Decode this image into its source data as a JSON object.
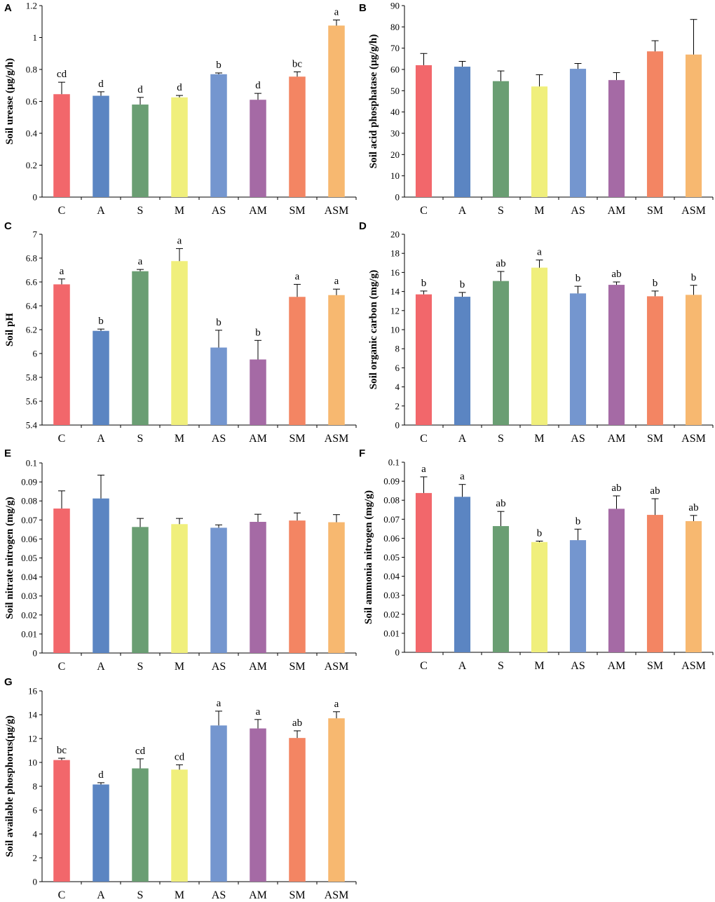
{
  "colors": {
    "C": "#f2676b",
    "A": "#5b85c2",
    "S": "#6a9e73",
    "M": "#f0ef7c",
    "AS": "#7496cf",
    "AM": "#a56aa5",
    "SM": "#f38563",
    "ASM": "#f7b870"
  },
  "chart_data": [
    {
      "panel": "A",
      "type": "bar",
      "ylabel": "Soil urease (μg/g/h)",
      "categories": [
        "C",
        "A",
        "S",
        "M",
        "AS",
        "AM",
        "SM",
        "ASM"
      ],
      "values": [
        0.645,
        0.635,
        0.58,
        0.625,
        0.77,
        0.61,
        0.755,
        1.075
      ],
      "errors": [
        0.075,
        0.025,
        0.045,
        0.012,
        0.008,
        0.04,
        0.03,
        0.035
      ],
      "labels": [
        "cd",
        "d",
        "d",
        "d",
        "b",
        "d",
        "bc",
        "a"
      ],
      "ylim": [
        0,
        1.2
      ],
      "yticks": [
        0,
        0.2,
        0.4,
        0.6,
        0.8,
        1,
        1.2
      ],
      "yticklabels": [
        "0",
        "0.2",
        "0.4",
        "0.6",
        "0.8",
        "1",
        "1.2"
      ]
    },
    {
      "panel": "B",
      "type": "bar",
      "ylabel": "Soil acid phosphatase (μg/g/h)",
      "categories": [
        "C",
        "A",
        "S",
        "M",
        "AS",
        "AM",
        "SM",
        "ASM"
      ],
      "values": [
        62,
        61.3,
        54.5,
        52,
        60.3,
        55,
        68.5,
        67
      ],
      "errors": [
        5.5,
        2.5,
        4.8,
        5.5,
        2.5,
        3.5,
        5,
        16.5
      ],
      "labels": [
        "",
        "",
        "",
        "",
        "",
        "",
        "",
        ""
      ],
      "ylim": [
        0,
        90
      ],
      "yticks": [
        0,
        10,
        20,
        30,
        40,
        50,
        60,
        70,
        80,
        90
      ],
      "yticklabels": [
        "0",
        "10",
        "20",
        "30",
        "40",
        "50",
        "60",
        "70",
        "80",
        "90"
      ]
    },
    {
      "panel": "C",
      "type": "bar",
      "ylabel": "Soil pH",
      "categories": [
        "C",
        "A",
        "S",
        "M",
        "AS",
        "AM",
        "SM",
        "ASM"
      ],
      "values": [
        6.58,
        6.19,
        6.69,
        6.775,
        6.05,
        5.95,
        6.475,
        6.49
      ],
      "errors": [
        0.045,
        0.015,
        0.015,
        0.105,
        0.145,
        0.16,
        0.105,
        0.05
      ],
      "labels": [
        "a",
        "b",
        "a",
        "a",
        "b",
        "b",
        "a",
        "a"
      ],
      "ylim": [
        5.4,
        7
      ],
      "yticks": [
        5.4,
        5.6,
        5.8,
        6,
        6.2,
        6.4,
        6.6,
        6.8,
        7
      ],
      "yticklabels": [
        "5.4",
        "5.6",
        "5.8",
        "6",
        "6.2",
        "6.4",
        "6.6",
        "6.8",
        "7"
      ]
    },
    {
      "panel": "D",
      "type": "bar",
      "ylabel": "Soil organic carbon (mg/g)",
      "categories": [
        "C",
        "A",
        "S",
        "M",
        "AS",
        "AM",
        "SM",
        "ASM"
      ],
      "values": [
        13.7,
        13.45,
        15.1,
        16.5,
        13.8,
        14.7,
        13.5,
        13.65
      ],
      "errors": [
        0.35,
        0.45,
        1.0,
        0.8,
        0.75,
        0.3,
        0.55,
        1.0
      ],
      "labels": [
        "b",
        "b",
        "ab",
        "a",
        "b",
        "ab",
        "b",
        "b"
      ],
      "ylim": [
        0,
        20
      ],
      "yticks": [
        0,
        2,
        4,
        6,
        8,
        10,
        12,
        14,
        16,
        18,
        20
      ],
      "yticklabels": [
        "0",
        "2",
        "4",
        "6",
        "8",
        "10",
        "12",
        "14",
        "16",
        "18",
        "20"
      ]
    },
    {
      "panel": "E",
      "type": "bar",
      "ylabel": "Soil nitrate nitrogen (mg/g)",
      "categories": [
        "C",
        "A",
        "S",
        "M",
        "AS",
        "AM",
        "SM",
        "ASM"
      ],
      "values": [
        0.076,
        0.0813,
        0.0663,
        0.0678,
        0.0659,
        0.069,
        0.0697,
        0.0688
      ],
      "errors": [
        0.0093,
        0.0123,
        0.0045,
        0.003,
        0.0015,
        0.004,
        0.004,
        0.004
      ],
      "labels": [
        "",
        "",
        "",
        "",
        "",
        "",
        "",
        ""
      ],
      "ylim": [
        0,
        0.1
      ],
      "yticks": [
        0,
        0.01,
        0.02,
        0.03,
        0.04,
        0.05,
        0.06,
        0.07,
        0.08,
        0.09,
        0.1
      ],
      "yticklabels": [
        "0",
        "0.01",
        "0.02",
        "0.03",
        "0.04",
        "0.05",
        "0.06",
        "0.07",
        "0.08",
        "0.09",
        "0.1"
      ]
    },
    {
      "panel": "F",
      "type": "bar",
      "ylabel": "Soil ammonia nitrogen (mg/g)",
      "categories": [
        "C",
        "A",
        "S",
        "M",
        "AS",
        "AM",
        "SM",
        "ASM"
      ],
      "values": [
        0.0838,
        0.0818,
        0.0664,
        0.058,
        0.059,
        0.0755,
        0.0723,
        0.069
      ],
      "errors": [
        0.0085,
        0.0065,
        0.0077,
        0.0005,
        0.0058,
        0.0068,
        0.0085,
        0.003
      ],
      "labels": [
        "a",
        "a",
        "ab",
        "b",
        "b",
        "ab",
        "ab",
        "ab"
      ],
      "ylim": [
        0,
        0.1
      ],
      "yticks": [
        0,
        0.01,
        0.02,
        0.03,
        0.04,
        0.05,
        0.06,
        0.07,
        0.08,
        0.09,
        0.1
      ],
      "yticklabels": [
        "0",
        "0.01",
        "0.02",
        "0.03",
        "0.04",
        "0.05",
        "0.06",
        "0.07",
        "0.08",
        "0.09",
        "0.1"
      ]
    },
    {
      "panel": "G",
      "type": "bar",
      "ylabel": "Soil available phosphorus(μg/g)",
      "categories": [
        "C",
        "A",
        "S",
        "M",
        "AS",
        "AM",
        "SM",
        "ASM"
      ],
      "values": [
        10.2,
        8.15,
        9.5,
        9.4,
        13.1,
        12.85,
        12.05,
        13.7
      ],
      "errors": [
        0.15,
        0.15,
        0.8,
        0.4,
        1.2,
        0.75,
        0.6,
        0.55
      ],
      "labels": [
        "bc",
        "d",
        "cd",
        "cd",
        "a",
        "a",
        "ab",
        "a"
      ],
      "ylim": [
        0,
        16
      ],
      "yticks": [
        0,
        2,
        4,
        6,
        8,
        10,
        12,
        14,
        16
      ],
      "yticklabels": [
        "0",
        "2",
        "4",
        "6",
        "8",
        "10",
        "12",
        "14",
        "16"
      ]
    }
  ]
}
